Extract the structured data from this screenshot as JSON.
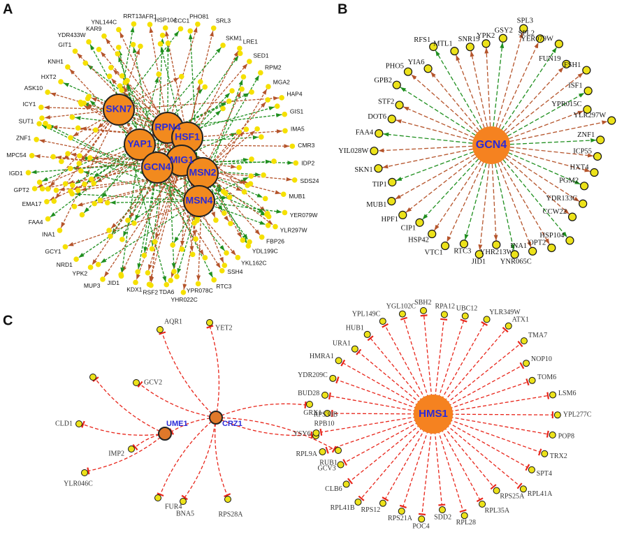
{
  "panels": [
    {
      "label": "A",
      "hubs": [
        "SKN7",
        "RPN4",
        "HSF1",
        "YAP1",
        "MIG1",
        "GCN4",
        "MSN2",
        "MSN4"
      ],
      "nodes": [
        "CCC1",
        "PHO81",
        "SRL3",
        "SKM1",
        "LRE1",
        "SED1",
        "RPM2",
        "MGA2",
        "HAP4",
        "GIS1",
        "IMA5",
        "CMR3",
        "IDP2",
        "SDS24",
        "MUB1",
        "YER079W",
        "YLR297W",
        "FBP26",
        "YDL199C",
        "YKL162C",
        "SSH4",
        "RTC3",
        "YPR078C",
        "YHR022C",
        "TDA6",
        "RSF2",
        "KDX1",
        "JID1",
        "MUP3",
        "YPK2",
        "NRD1",
        "GCY1",
        "INA1",
        "FAA4",
        "EMA17",
        "GPT2",
        "IGD1",
        "MPC54",
        "ZNF1",
        "SUT1",
        "ICY1",
        "ASK10",
        "HXT2",
        "KNH1",
        "GIT1",
        "YDR433W",
        "KAR9",
        "YNL144C",
        "RRT13",
        "AFR1",
        "HSP104"
      ]
    },
    {
      "label": "B",
      "hubs": [
        "GCN4"
      ],
      "nodes": [
        "YPK2",
        "GSY2",
        "SPL3",
        "SPL2",
        "YER079W",
        "FUN19",
        "FSH1",
        "ISF1",
        "YPR015C",
        "YLR297W",
        "ZNF1",
        "ICP55",
        "HXT4",
        "PGM2",
        "YDR133C",
        "CCW22",
        "HSP104",
        "OPT2",
        "INA1",
        "YNR065C",
        "YHR213W",
        "JID1",
        "RTC3",
        "VTC1",
        "HSP42",
        "CIP1",
        "HPF1",
        "MUB1",
        "TIP1",
        "SKN1",
        "YIL028W",
        "FAA4",
        "DOT6",
        "STF2",
        "GPB2",
        "PHO5",
        "YIA6",
        "RFS1",
        "MTL1",
        "SNR19"
      ]
    },
    {
      "label": "C",
      "hubs": [
        {
          "name": "UME1",
          "targets": [
            "CLD1",
            "IMP2",
            "YLR046C"
          ]
        },
        {
          "name": "CRZ1",
          "targets": [
            "AQR1",
            "YET2",
            "GCV2",
            "FUR4",
            "BNA5",
            "RPS28A",
            "RPS30B",
            "RPB10",
            "RUB1"
          ]
        },
        {
          "name": "HMS1",
          "targets": [
            "RPA12",
            "UBC12",
            "YLR349W",
            "ATX1",
            "TMA7",
            "NOP10",
            "TOM6",
            "LSM6",
            "YPL277C",
            "POP8",
            "TRX2",
            "SPT4",
            "RPL41A",
            "RPS25A",
            "RPL35A",
            "RPL28",
            "SDD2",
            "POC4",
            "RPS21A",
            "RPS12",
            "RPL41B",
            "CLB6",
            "GCV3",
            "RPL9A",
            "YSY6",
            "GRX1",
            "BUD28",
            "YDR209C",
            "HMRA1",
            "URA1",
            "HUB1",
            "YPL149C",
            "YGL102C",
            "SBH2"
          ]
        }
      ]
    }
  ]
}
